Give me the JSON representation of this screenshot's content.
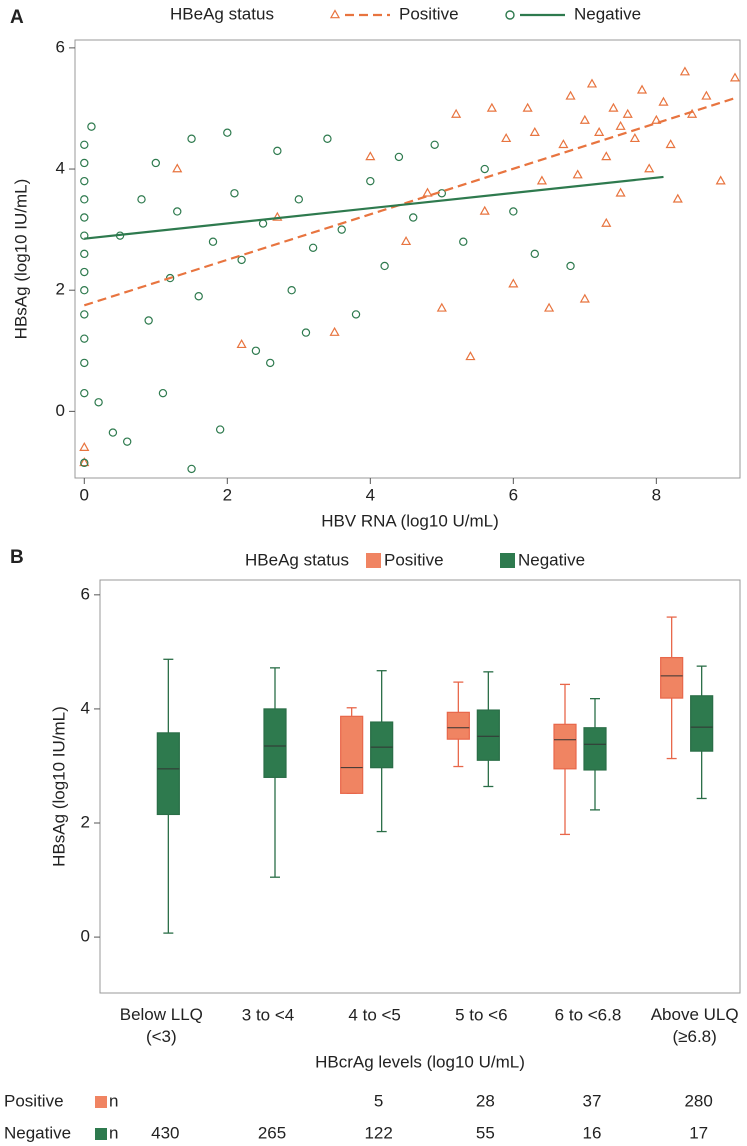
{
  "chart_data": [
    {
      "type": "scatter",
      "panel_label": "A",
      "legend_title": "HBeAg status",
      "xlabel": "HBV RNA (log10 U/mL)",
      "ylabel": "HBsAg (log10 IU/mL)",
      "xlim": [
        -0.13,
        9.17
      ],
      "ylim": [
        -1.1,
        6.13
      ],
      "xticks": [
        0,
        2,
        4,
        6,
        8
      ],
      "yticks": [
        0,
        2,
        4,
        6
      ],
      "series": [
        {
          "name": "Positive",
          "color": "#e8743f",
          "marker": "triangle",
          "x": [
            0,
            0,
            1.3,
            2.2,
            2.7,
            3.5,
            4.0,
            4.5,
            4.8,
            5.0,
            5.2,
            5.4,
            5.6,
            5.9,
            6.0,
            6.2,
            6.4,
            6.5,
            6.7,
            6.8,
            6.9,
            7.0,
            7.0,
            7.1,
            7.2,
            7.3,
            7.4,
            7.5,
            7.5,
            7.6,
            7.7,
            7.8,
            7.9,
            8.0,
            8.1,
            8.2,
            8.4,
            8.5,
            8.7,
            8.9,
            9.1,
            7.3,
            6.3,
            5.7,
            8.3
          ],
          "y": [
            -0.6,
            -0.85,
            4.0,
            1.1,
            3.2,
            1.3,
            4.2,
            2.8,
            3.6,
            1.7,
            4.9,
            0.9,
            3.3,
            4.5,
            2.1,
            5.0,
            3.8,
            1.7,
            4.4,
            5.2,
            3.9,
            4.8,
            1.85,
            5.4,
            4.6,
            4.2,
            5.0,
            4.7,
            3.6,
            4.9,
            4.5,
            5.3,
            4.0,
            4.8,
            5.1,
            4.4,
            5.6,
            4.9,
            5.2,
            3.8,
            5.5,
            3.1,
            4.6,
            5.0,
            3.5
          ],
          "fit": {
            "x": [
              0,
              9.1
            ],
            "y": [
              1.75,
              5.17
            ]
          }
        },
        {
          "name": "Negative",
          "color": "#2e7a4e",
          "marker": "circle",
          "x": [
            0,
            0,
            0,
            0,
            0,
            0,
            0,
            0,
            0,
            0,
            0,
            0,
            0,
            0,
            0.1,
            0.2,
            0.4,
            0.6,
            0.5,
            0.8,
            1.0,
            1.2,
            1.3,
            1.5,
            1.5,
            1.6,
            1.8,
            1.9,
            2.0,
            2.1,
            2.2,
            2.4,
            2.5,
            2.7,
            2.9,
            3.0,
            3.2,
            3.4,
            3.6,
            3.8,
            4.0,
            4.2,
            4.4,
            4.6,
            5.0,
            5.3,
            5.6,
            6.0,
            6.3,
            6.8,
            1.1,
            0.9,
            2.6,
            3.1,
            4.9
          ],
          "y": [
            4.4,
            4.1,
            3.8,
            3.5,
            3.2,
            2.9,
            2.6,
            2.3,
            2.0,
            1.6,
            1.2,
            0.8,
            0.3,
            -0.85,
            4.7,
            0.15,
            -0.35,
            -0.5,
            2.9,
            3.5,
            4.1,
            2.2,
            3.3,
            -0.95,
            4.5,
            1.9,
            2.8,
            -0.3,
            4.6,
            3.6,
            2.5,
            1.0,
            3.1,
            4.3,
            2.0,
            3.5,
            2.7,
            4.5,
            3.0,
            1.6,
            3.8,
            2.4,
            4.2,
            3.2,
            3.6,
            2.8,
            4.0,
            3.3,
            2.6,
            2.4,
            0.3,
            1.5,
            0.8,
            1.3,
            4.4
          ],
          "fit": {
            "x": [
              0,
              8.1
            ],
            "y": [
              2.85,
              3.87
            ]
          }
        }
      ]
    },
    {
      "type": "box",
      "panel_label": "B",
      "legend_title": "HBeAg status",
      "xlabel": "HBcrAg levels (log10 U/mL)",
      "ylabel": "HBsAg (log10 IU/mL)",
      "ylim": [
        -0.98,
        6.26
      ],
      "yticks": [
        0,
        2,
        4,
        6
      ],
      "categories": [
        "Below LLQ (<3)",
        "3 to <4",
        "4 to <5",
        "5 to <6",
        "6 to <6.8",
        "Above ULQ (≥6.8)"
      ],
      "series": [
        {
          "name": "Positive",
          "color": "#f08462",
          "edge": "#e8674a",
          "boxes": [
            null,
            null,
            {
              "min": 2.52,
              "q1": 2.52,
              "median": 2.97,
              "q3": 3.87,
              "max": 4.02
            },
            {
              "min": 2.99,
              "q1": 3.47,
              "median": 3.67,
              "q3": 3.94,
              "max": 4.47
            },
            {
              "min": 1.8,
              "q1": 2.95,
              "median": 3.46,
              "q3": 3.73,
              "max": 4.43
            },
            {
              "min": 3.13,
              "q1": 4.19,
              "median": 4.58,
              "q3": 4.9,
              "max": 5.61
            }
          ],
          "n": [
            null,
            null,
            5,
            28,
            37,
            280
          ]
        },
        {
          "name": "Negative",
          "color": "#2e7a4e",
          "edge": "#2a6e47",
          "boxes": [
            {
              "min": 0.07,
              "q1": 2.15,
              "median": 2.95,
              "q3": 3.58,
              "max": 4.87
            },
            {
              "min": 1.05,
              "q1": 2.8,
              "median": 3.35,
              "q3": 4.0,
              "max": 4.72
            },
            {
              "min": 1.85,
              "q1": 2.97,
              "median": 3.33,
              "q3": 3.77,
              "max": 4.67
            },
            {
              "min": 2.64,
              "q1": 3.1,
              "median": 3.52,
              "q3": 3.98,
              "max": 4.65
            },
            {
              "min": 2.23,
              "q1": 2.93,
              "median": 3.38,
              "q3": 3.67,
              "max": 4.18
            },
            {
              "min": 2.43,
              "q1": 3.26,
              "median": 3.68,
              "q3": 4.23,
              "max": 4.75
            }
          ],
          "n": [
            430,
            265,
            122,
            55,
            16,
            17
          ]
        }
      ],
      "n_label": "n"
    }
  ]
}
